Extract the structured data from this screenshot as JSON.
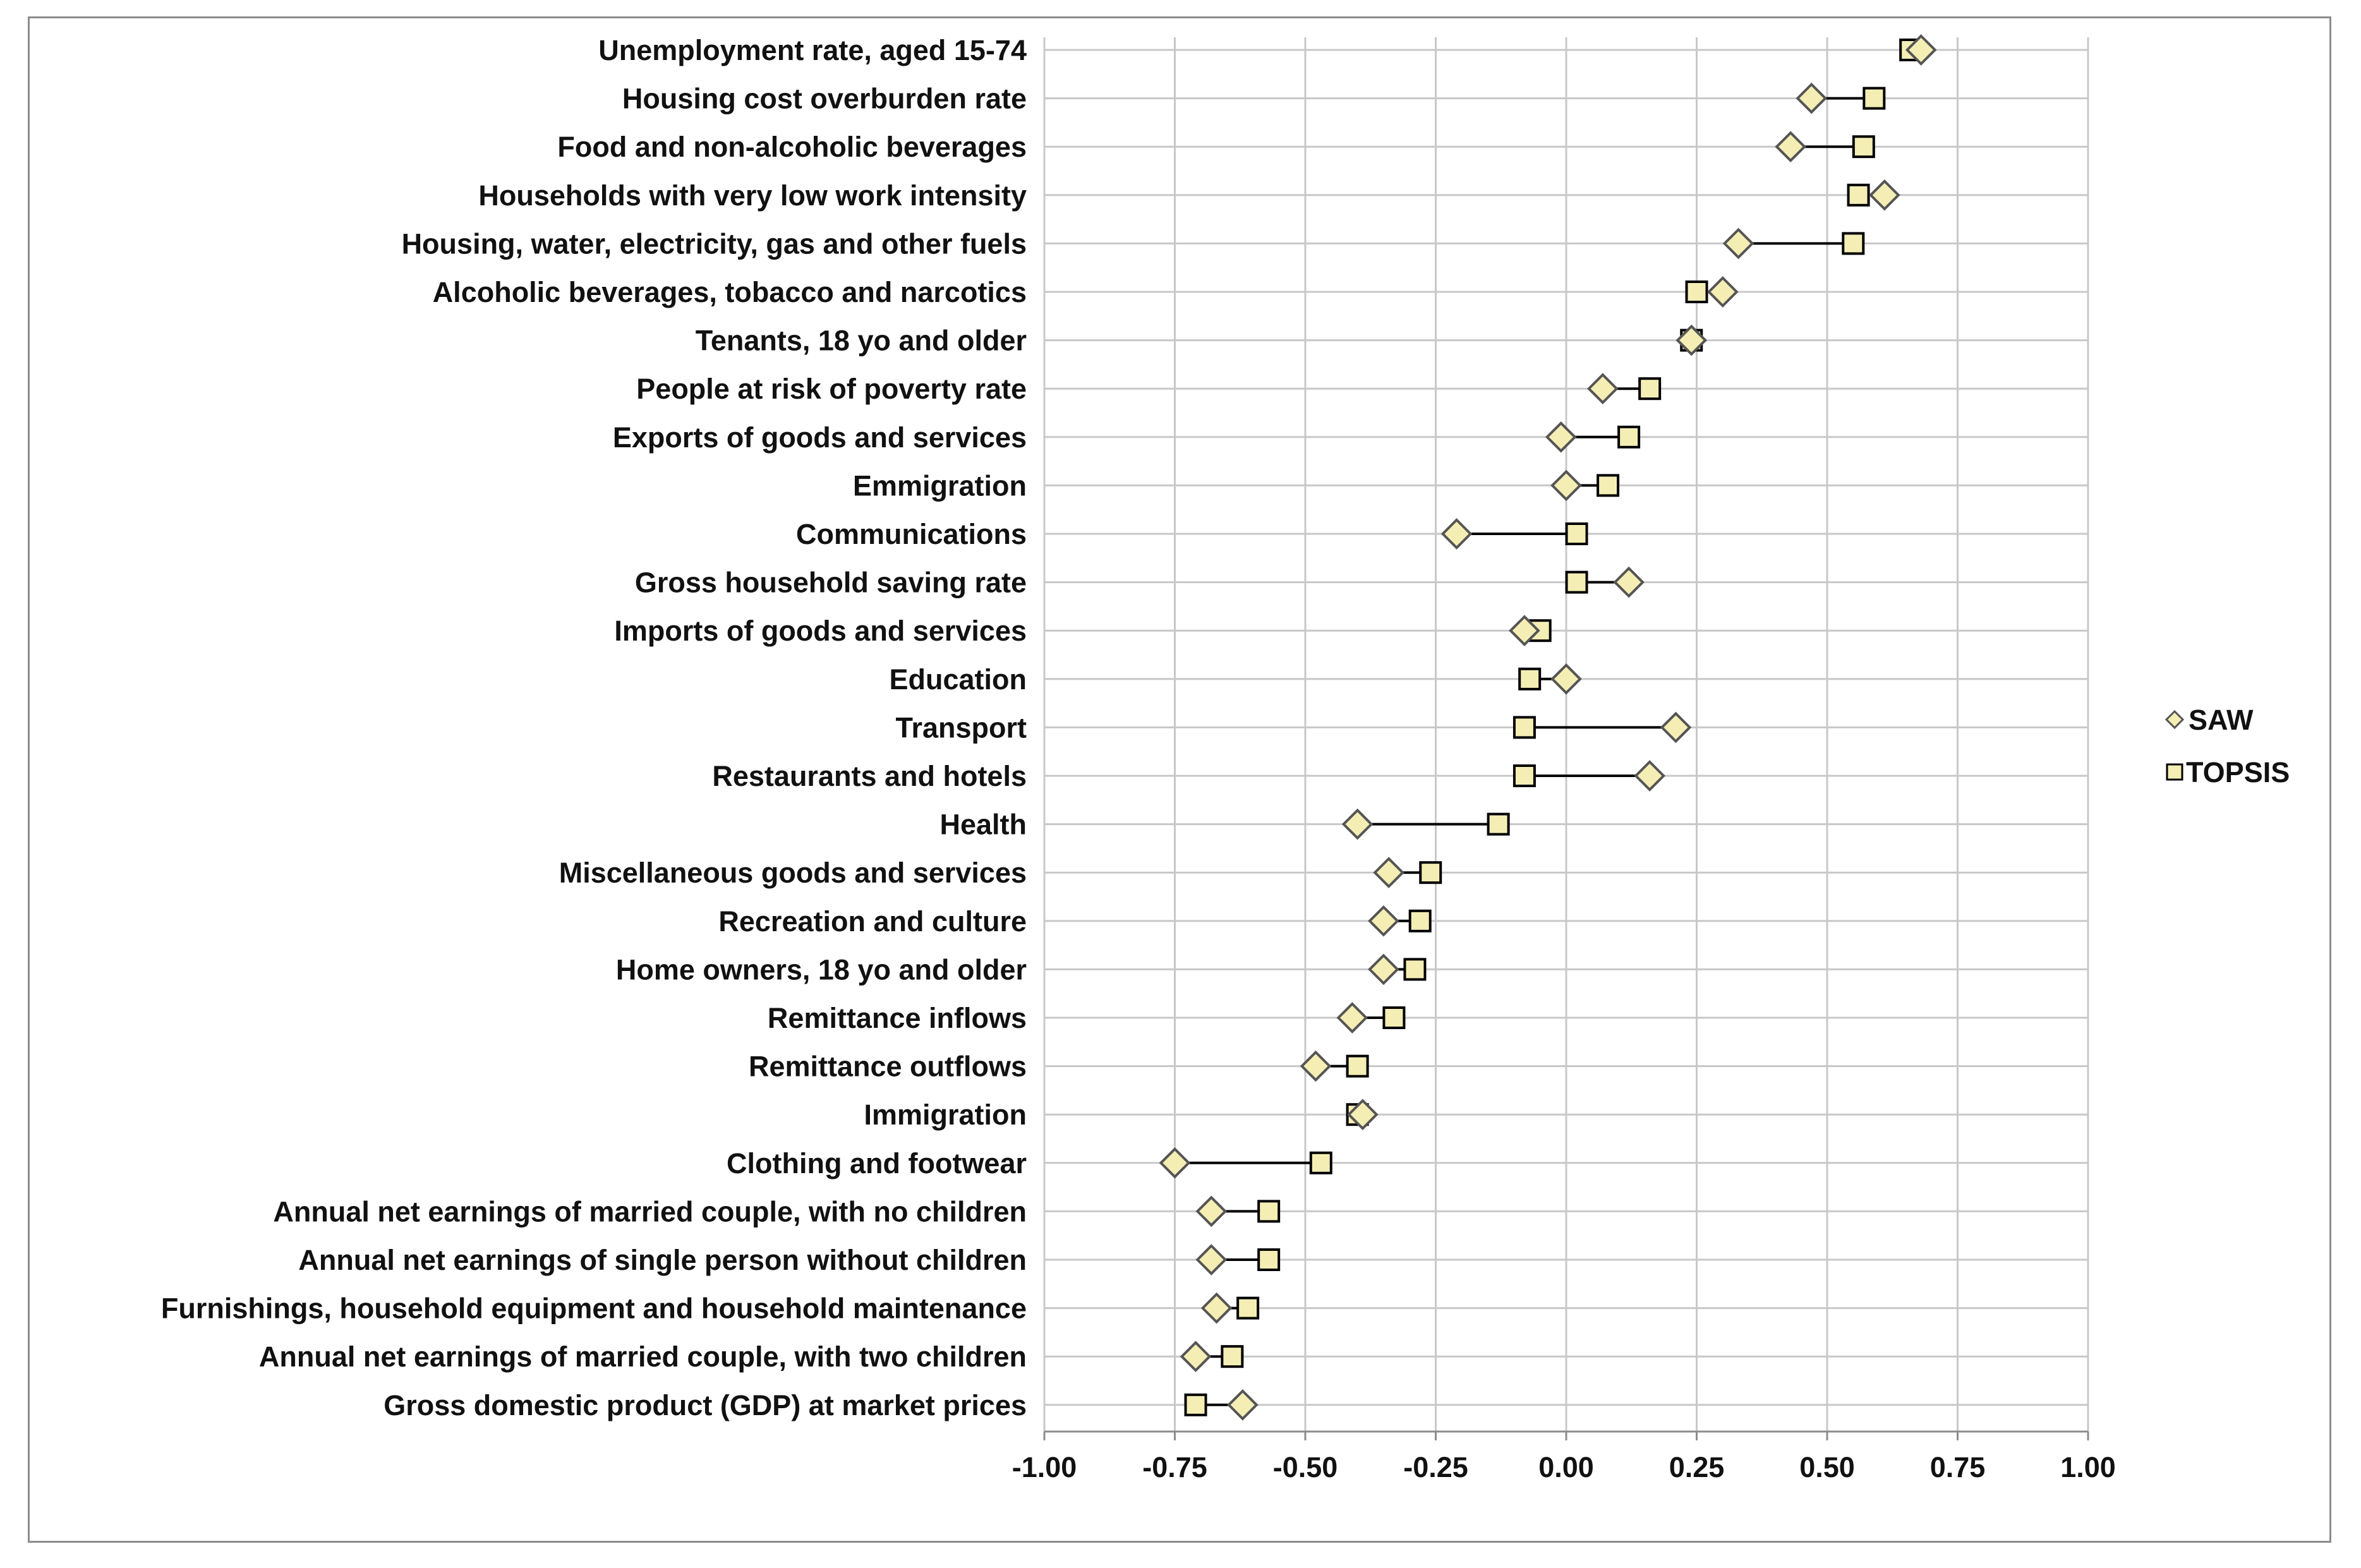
{
  "chart_data": {
    "type": "scatter",
    "title": "",
    "xlabel": "",
    "ylabel": "",
    "xlim": [
      -1.0,
      1.0
    ],
    "x_ticks": [
      "-1.00",
      "-0.75",
      "-0.50",
      "-0.25",
      "0.00",
      "0.25",
      "0.50",
      "0.75",
      "1.00"
    ],
    "x_tick_values": [
      -1.0,
      -0.75,
      -0.5,
      -0.25,
      0.0,
      0.25,
      0.5,
      0.75,
      1.0
    ],
    "grid": true,
    "legend_position": "right",
    "categories": [
      "Unemployment rate, aged 15-74",
      "Housing cost overburden rate",
      "Food and non-alcoholic beverages",
      "Households with very low work intensity",
      "Housing, water, electricity, gas and other fuels",
      "Alcoholic beverages, tobacco and narcotics",
      "Tenants, 18 yo and older",
      "People at risk of poverty rate",
      "Exports of goods and services",
      "Emmigration",
      "Communications",
      "Gross household saving rate",
      "Imports of goods and services",
      "Education",
      "Transport",
      "Restaurants and hotels",
      "Health",
      "Miscellaneous goods and services",
      "Recreation and culture",
      "Home owners, 18 yo and older",
      "Remittance inflows",
      "Remittance outflows",
      "Immigration",
      "Clothing and footwear",
      "Annual net earnings of married couple, with no children",
      "Annual net earnings of single person without children",
      "Furnishings, household equipment and household maintenance",
      "Annual net earnings of married couple, with two children",
      "Gross domestic product (GDP) at market prices"
    ],
    "series": [
      {
        "name": "SAW",
        "marker": "diamond",
        "color": "#f5eeb4",
        "values": [
          0.68,
          0.47,
          0.43,
          0.61,
          0.33,
          0.3,
          0.24,
          0.07,
          -0.01,
          0.0,
          -0.21,
          0.12,
          -0.08,
          0.0,
          0.21,
          0.16,
          -0.4,
          -0.34,
          -0.35,
          -0.35,
          -0.41,
          -0.48,
          -0.39,
          -0.75,
          -0.68,
          -0.68,
          -0.67,
          -0.71,
          -0.62
        ]
      },
      {
        "name": "TOPSIS",
        "marker": "square",
        "color": "#f5eeb4",
        "values": [
          0.66,
          0.59,
          0.57,
          0.56,
          0.55,
          0.25,
          0.24,
          0.16,
          0.12,
          0.08,
          0.02,
          0.02,
          -0.05,
          -0.07,
          -0.08,
          -0.08,
          -0.13,
          -0.26,
          -0.28,
          -0.29,
          -0.33,
          -0.4,
          -0.4,
          -0.47,
          -0.57,
          -0.57,
          -0.61,
          -0.64,
          -0.71
        ]
      }
    ],
    "connector_color": "#000000",
    "grid_color": "#c8c8c8"
  }
}
